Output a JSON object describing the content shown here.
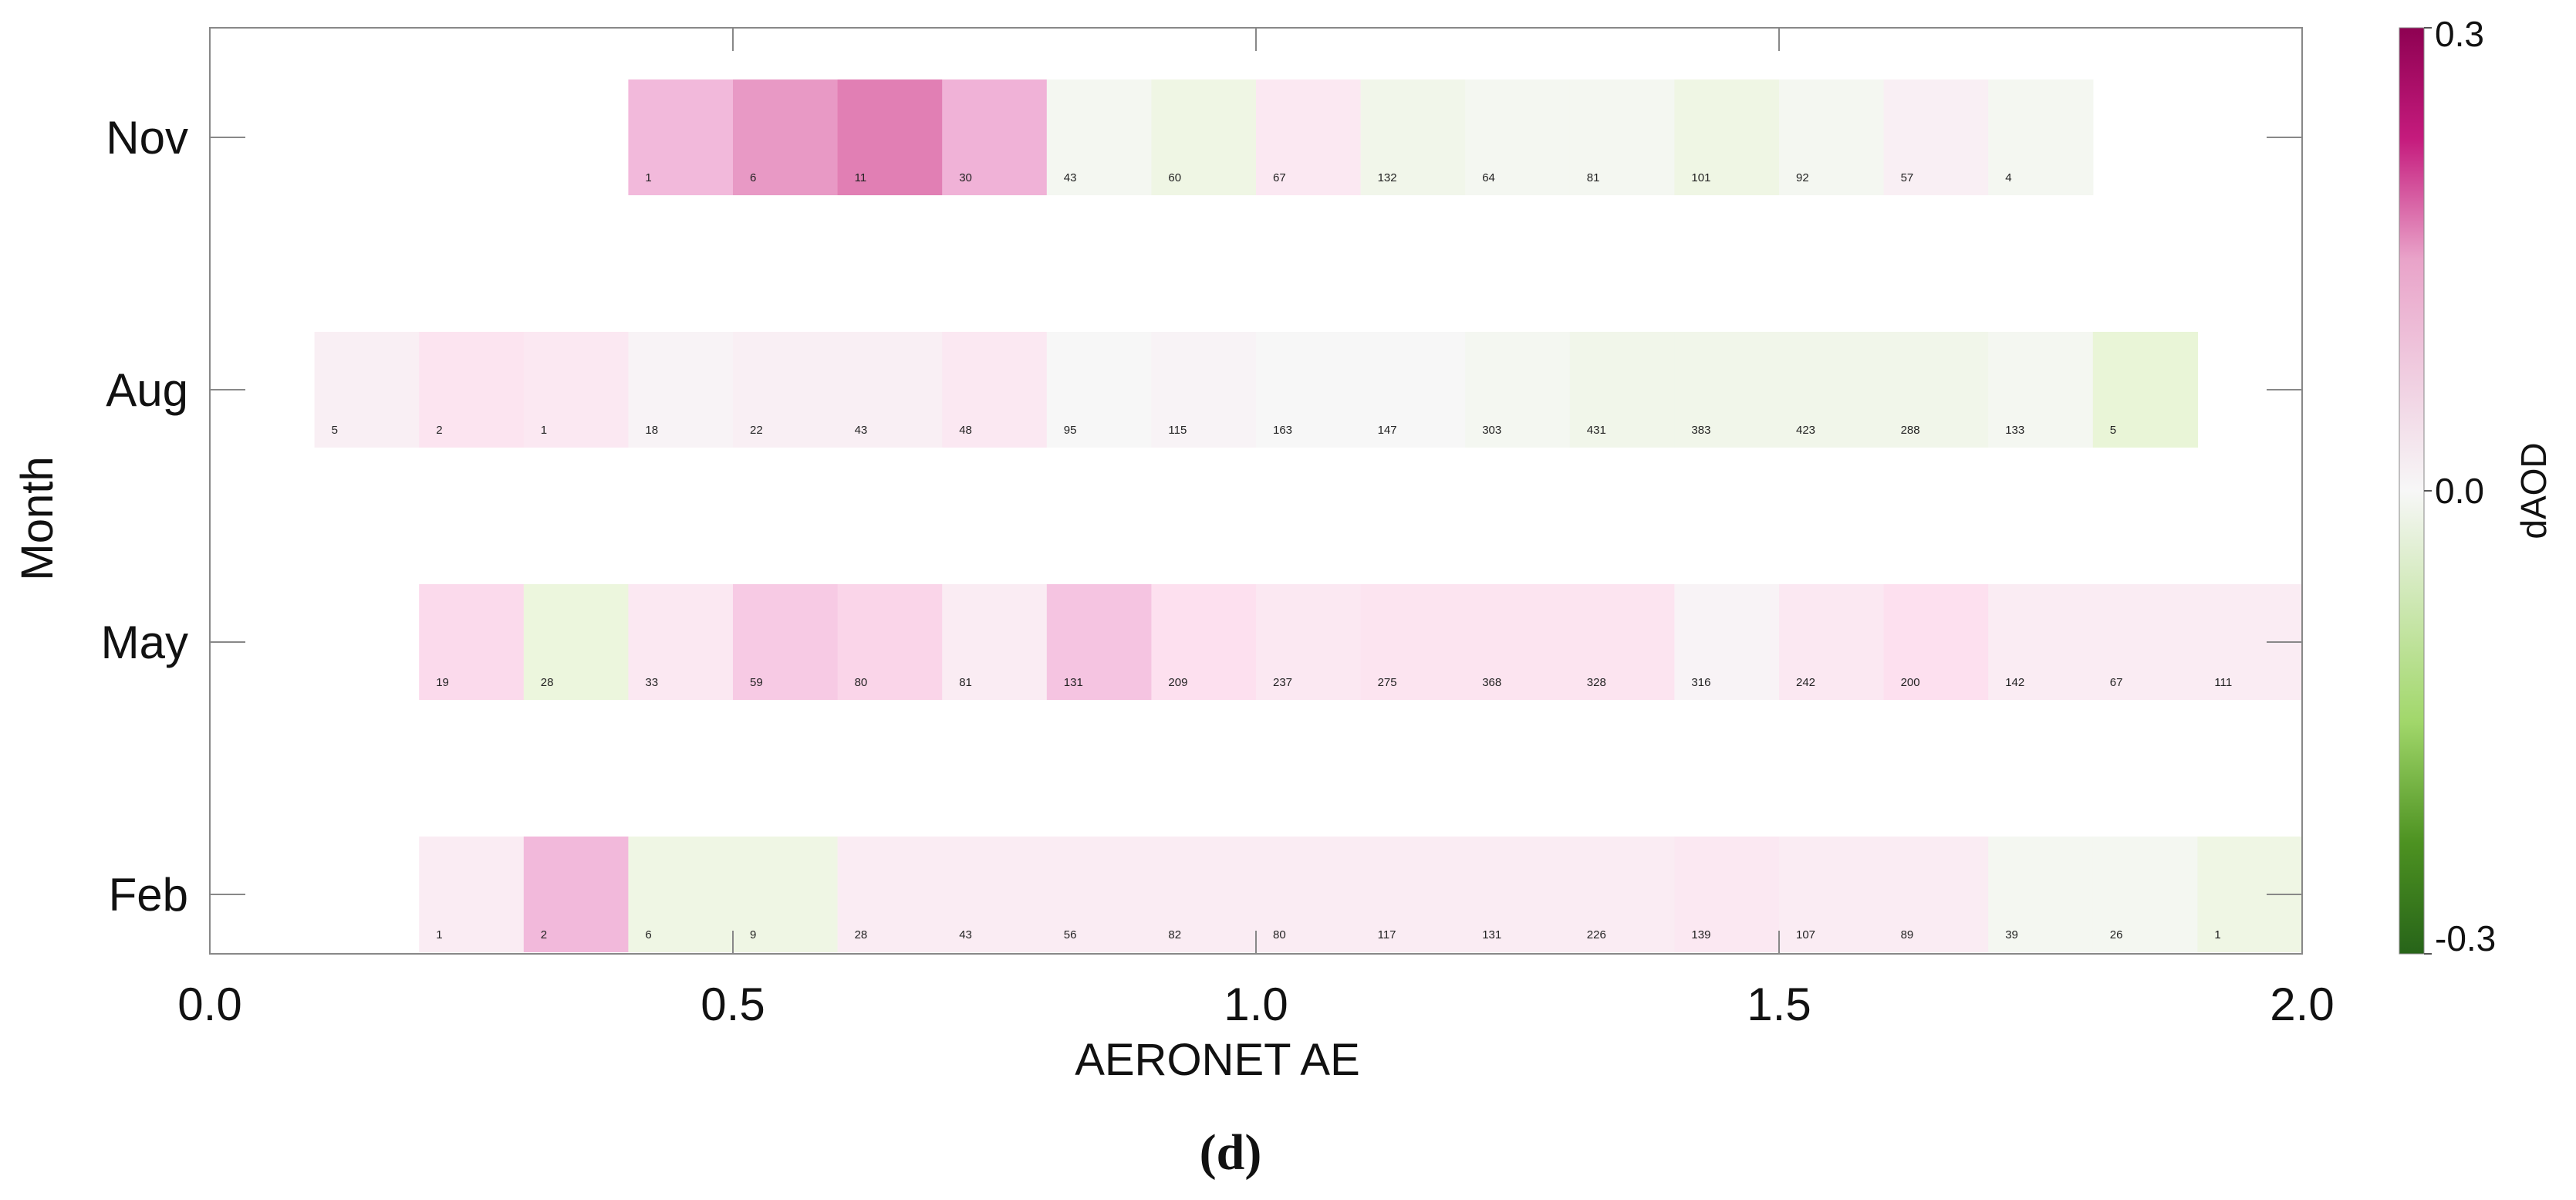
{
  "chart_data": {
    "type": "heatmap",
    "xlabel": "AERONET AE",
    "ylabel": "Month",
    "xlim": [
      0.0,
      2.0
    ],
    "x_ticks": [
      "0.0",
      "0.5",
      "1.0",
      "1.5",
      "2.0"
    ],
    "bin_width": 0.1,
    "colorbar": {
      "label": "dAOD",
      "range": [
        -0.3,
        0.3
      ],
      "ticks": [
        "0.3",
        "0.0",
        "-0.3"
      ],
      "colors": {
        "max": "#8e0152",
        "mid": "#f7f7f7",
        "min": "#276419"
      }
    },
    "panel_label": "(d)",
    "rows": [
      {
        "month": "Nov",
        "start": 0.4,
        "dAOD": [
          0.13,
          0.17,
          0.2,
          0.14,
          -0.01,
          -0.03,
          0.04,
          -0.02,
          -0.01,
          -0.01,
          -0.03,
          -0.01,
          0.02,
          -0.01
        ],
        "counts": [
          "1",
          "6",
          "11",
          "30",
          "43",
          "60",
          "67",
          "132",
          "64",
          "81",
          "101",
          "92",
          "57",
          "4"
        ]
      },
      {
        "month": "Aug",
        "start": 0.1,
        "dAOD": [
          0.02,
          0.05,
          0.04,
          0.01,
          0.02,
          0.02,
          0.04,
          0.0,
          0.01,
          0.0,
          0.0,
          -0.01,
          -0.02,
          -0.02,
          -0.02,
          -0.02,
          -0.01,
          -0.05
        ],
        "counts": [
          "5",
          "2",
          "1",
          "18",
          "22",
          "43",
          "48",
          "95",
          "115",
          "163",
          "147",
          "303",
          "431",
          "383",
          "423",
          "288",
          "133",
          "5"
        ]
      },
      {
        "month": "May",
        "start": 0.2,
        "dAOD": [
          0.07,
          -0.04,
          0.04,
          0.1,
          0.08,
          0.03,
          0.11,
          0.06,
          0.04,
          0.05,
          0.05,
          0.05,
          0.01,
          0.04,
          0.06,
          0.03,
          0.03,
          0.03
        ],
        "counts": [
          "19",
          "28",
          "33",
          "59",
          "80",
          "81",
          "131",
          "209",
          "237",
          "275",
          "368",
          "328",
          "316",
          "242",
          "200",
          "142",
          "67",
          "111"
        ]
      },
      {
        "month": "Feb",
        "start": 0.2,
        "dAOD": [
          0.03,
          0.13,
          -0.03,
          -0.03,
          0.03,
          0.03,
          0.03,
          0.03,
          0.03,
          0.03,
          0.03,
          0.03,
          0.04,
          0.03,
          0.03,
          -0.01,
          -0.01,
          -0.03
        ],
        "counts": [
          "1",
          "2",
          "6",
          "9",
          "28",
          "43",
          "56",
          "82",
          "80",
          "117",
          "131",
          "226",
          "139",
          "107",
          "89",
          "39",
          "26",
          "1"
        ]
      }
    ]
  }
}
